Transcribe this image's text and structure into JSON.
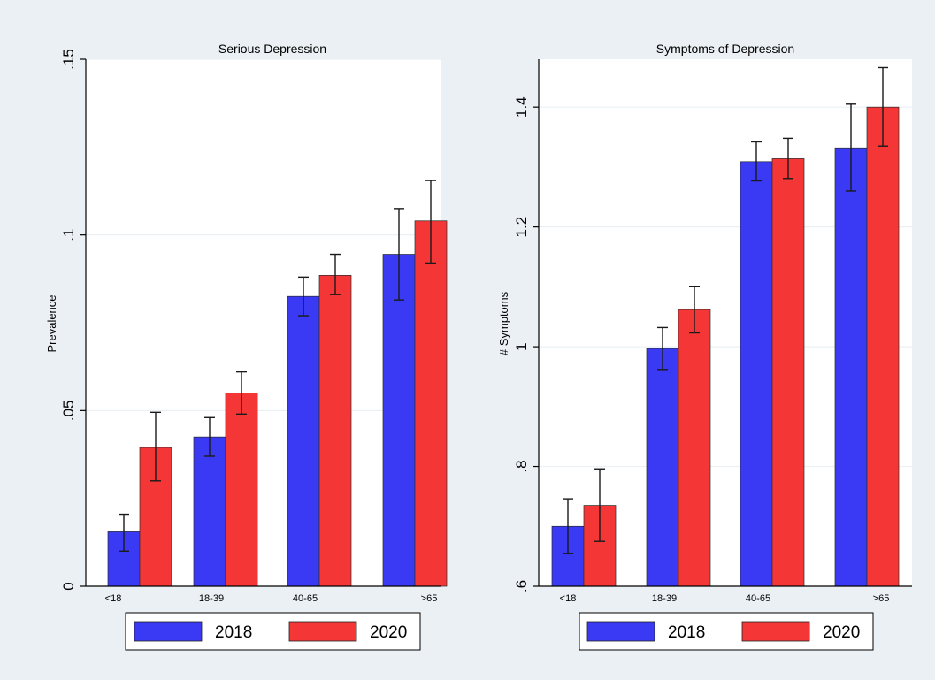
{
  "chart_data": [
    {
      "type": "bar",
      "title": "Serious Depression",
      "xlabel": "",
      "ylabel": "Prevalence",
      "ylim": [
        0,
        0.15
      ],
      "yticks": [
        0,
        0.05,
        0.1,
        0.15
      ],
      "ytick_labels": [
        "0",
        ".05",
        ".1",
        ".15"
      ],
      "categories": [
        "<18",
        "18-39",
        "40-65",
        ">65"
      ],
      "grid": true,
      "legend_position": "bottom",
      "series": [
        {
          "name": "2018",
          "color": "#3a3af4",
          "values": [
            0.0155,
            0.0425,
            0.0825,
            0.0945
          ],
          "ci_low": [
            0.01,
            0.037,
            0.077,
            0.0815
          ],
          "ci_high": [
            0.0205,
            0.048,
            0.088,
            0.1075
          ]
        },
        {
          "name": "2020",
          "color": "#f53636",
          "values": [
            0.0395,
            0.055,
            0.0885,
            0.104
          ],
          "ci_low": [
            0.03,
            0.049,
            0.083,
            0.092
          ],
          "ci_high": [
            0.0495,
            0.061,
            0.0945,
            0.1155
          ]
        }
      ]
    },
    {
      "type": "bar",
      "title": "Symptoms of Depression",
      "xlabel": "",
      "ylabel": "# Symptoms",
      "ylim": [
        0.6,
        1.48
      ],
      "yticks": [
        0.6,
        0.8,
        1.0,
        1.2,
        1.4
      ],
      "ytick_labels": [
        ".6",
        ".8",
        "1",
        "1.2",
        "1.4"
      ],
      "categories": [
        "<18",
        "18-39",
        "40-65",
        ">65"
      ],
      "grid": true,
      "legend_position": "bottom",
      "series": [
        {
          "name": "2018",
          "color": "#3a3af4",
          "values": [
            0.7,
            0.997,
            1.309,
            1.332
          ],
          "ci_low": [
            0.655,
            0.962,
            1.277,
            1.26
          ],
          "ci_high": [
            0.746,
            1.032,
            1.342,
            1.405
          ]
        },
        {
          "name": "2020",
          "color": "#f53636",
          "values": [
            0.735,
            1.062,
            1.314,
            1.4
          ],
          "ci_low": [
            0.675,
            1.023,
            1.281,
            1.335
          ],
          "ci_high": [
            0.796,
            1.101,
            1.348,
            1.466
          ]
        }
      ]
    }
  ]
}
